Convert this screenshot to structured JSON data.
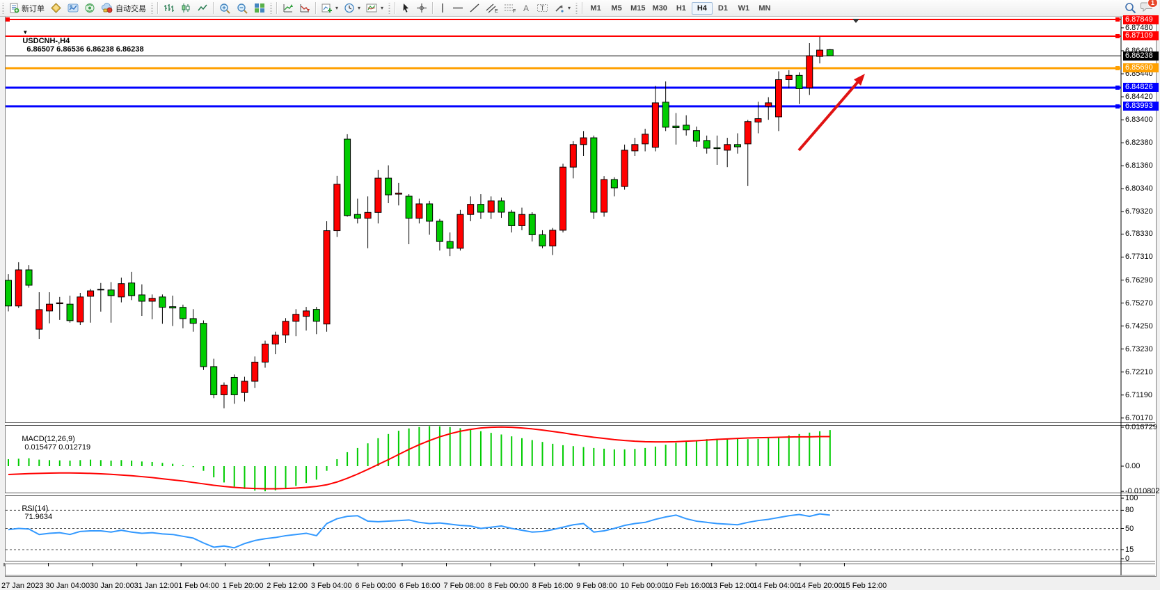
{
  "toolbar": {
    "new_order_label": "新订单",
    "auto_trading_label": "自动交易",
    "timeframes": [
      "M1",
      "M5",
      "M15",
      "M30",
      "H1",
      "H4",
      "D1",
      "W1",
      "MN"
    ],
    "active_timeframe": "H4",
    "notification_badge": "1"
  },
  "chart_title": {
    "collapse_marker": "▼",
    "symbol_period": "USDCNH-,H4",
    "ohlc_text": "6.86507 6.86536 6.86238 6.86238"
  },
  "chart_data": {
    "type": "candlestick",
    "symbol": "USDCNH",
    "timeframe": "H4",
    "bull_color": "#FF0000",
    "bear_color": "#00CC00",
    "ylim": [
      6.695,
      6.882
    ],
    "x_labels": [
      "27 Jan 2023",
      "30 Jan 04:00",
      "30 Jan 20:00",
      "31 Jan 12:00",
      "1 Feb 04:00",
      "1 Feb 20:00",
      "2 Feb 12:00",
      "3 Feb 04:00",
      "6 Feb 00:00",
      "6 Feb 16:00",
      "7 Feb 08:00",
      "8 Feb 00:00",
      "8 Feb 16:00",
      "9 Feb 08:00",
      "10 Feb 00:00",
      "10 Feb 16:00",
      "13 Feb 12:00",
      "14 Feb 04:00",
      "14 Feb 20:00",
      "15 Feb 12:00"
    ],
    "candles": [
      [
        6.7628,
        6.7655,
        6.749,
        6.7514
      ],
      [
        6.7514,
        6.7708,
        6.7505,
        6.7674
      ],
      [
        6.7674,
        6.7695,
        6.7595,
        6.7606
      ],
      [
        6.7411,
        6.7575,
        6.7368,
        6.7498
      ],
      [
        6.7492,
        6.7575,
        6.7437,
        6.7522
      ],
      [
        6.7524,
        6.7554,
        6.7452,
        6.7528
      ],
      [
        6.7522,
        6.756,
        6.744,
        6.7449
      ],
      [
        6.7443,
        6.7572,
        6.743,
        6.7554
      ],
      [
        6.7557,
        6.759,
        6.744,
        6.7581
      ],
      [
        6.7585,
        6.7616,
        6.7489,
        6.7588
      ],
      [
        6.7585,
        6.762,
        6.744,
        6.756
      ],
      [
        6.7554,
        6.764,
        6.753,
        6.7613
      ],
      [
        6.7616,
        6.7665,
        6.754,
        6.756
      ],
      [
        6.7563,
        6.761,
        6.747,
        6.7535
      ],
      [
        6.7535,
        6.7565,
        6.7455,
        6.7548
      ],
      [
        6.7554,
        6.7565,
        6.7435,
        6.7508
      ],
      [
        6.7511,
        6.756,
        6.7425,
        6.7505
      ],
      [
        6.7508,
        6.752,
        6.7415,
        6.7458
      ],
      [
        6.7458,
        6.75,
        6.74,
        6.7437
      ],
      [
        6.7437,
        6.745,
        6.723,
        6.7245
      ],
      [
        6.7245,
        6.728,
        6.7105,
        6.712
      ],
      [
        6.712,
        6.7175,
        6.706,
        6.7163
      ],
      [
        6.7197,
        6.721,
        6.708,
        6.712
      ],
      [
        6.713,
        6.72,
        6.709,
        6.718
      ],
      [
        6.718,
        6.729,
        6.715,
        6.7265
      ],
      [
        6.7265,
        6.736,
        6.724,
        6.7345
      ],
      [
        6.7345,
        6.74,
        6.73,
        6.7385
      ],
      [
        6.7385,
        6.746,
        6.735,
        6.7446
      ],
      [
        6.7446,
        6.75,
        6.738,
        6.7477
      ],
      [
        6.7468,
        6.751,
        6.7405,
        6.7492
      ],
      [
        6.7499,
        6.751,
        6.7389,
        6.7446
      ],
      [
        6.7434,
        6.789,
        6.74,
        6.7848
      ],
      [
        6.7848,
        6.8091,
        6.782,
        6.8054
      ],
      [
        6.8254,
        6.8276,
        6.791,
        6.7915
      ],
      [
        6.792,
        6.799,
        6.788,
        6.7903
      ],
      [
        6.7903,
        6.8,
        6.777,
        6.7929
      ],
      [
        6.7929,
        6.8118,
        6.788,
        6.8081
      ],
      [
        6.8081,
        6.8138,
        6.797,
        6.8007
      ],
      [
        6.801,
        6.806,
        6.796,
        6.8015
      ],
      [
        6.8001,
        6.801,
        6.7788,
        6.7903
      ],
      [
        6.7903,
        6.799,
        6.788,
        6.7967
      ],
      [
        6.7967,
        6.798,
        6.783,
        6.789
      ],
      [
        6.789,
        6.79,
        6.776,
        6.78
      ],
      [
        6.78,
        6.784,
        6.7735,
        6.777
      ],
      [
        6.777,
        6.794,
        6.776,
        6.792
      ],
      [
        6.792,
        6.8,
        6.789,
        6.7965
      ],
      [
        6.7965,
        6.801,
        6.79,
        6.793
      ],
      [
        6.793,
        6.8,
        6.79,
        6.798
      ],
      [
        6.798,
        6.7995,
        6.7905,
        6.793
      ],
      [
        6.793,
        6.794,
        6.784,
        6.787
      ],
      [
        6.787,
        6.795,
        6.785,
        6.792
      ],
      [
        6.792,
        6.793,
        6.78,
        6.783
      ],
      [
        6.783,
        6.785,
        6.777,
        6.778
      ],
      [
        6.778,
        6.786,
        6.774,
        6.785
      ],
      [
        6.785,
        6.8145,
        6.784,
        6.813
      ],
      [
        6.813,
        6.8245,
        6.808,
        6.823
      ],
      [
        6.823,
        6.829,
        6.818,
        6.826
      ],
      [
        6.826,
        6.827,
        6.79,
        6.793
      ],
      [
        6.793,
        6.809,
        6.791,
        6.8075
      ],
      [
        6.8075,
        6.8085,
        6.8,
        6.8038
      ],
      [
        6.8044,
        6.823,
        6.803,
        6.8205
      ],
      [
        6.8202,
        6.826,
        6.818,
        6.823
      ],
      [
        6.8233,
        6.83,
        6.82,
        6.8276
      ],
      [
        6.8218,
        6.849,
        6.82,
        6.8415
      ],
      [
        6.8418,
        6.851,
        6.829,
        6.8307
      ],
      [
        6.8312,
        6.837,
        6.823,
        6.8305
      ],
      [
        6.8316,
        6.836,
        6.827,
        6.8295
      ],
      [
        6.8292,
        6.831,
        6.822,
        6.8245
      ],
      [
        6.8248,
        6.827,
        6.819,
        6.8214
      ],
      [
        6.8216,
        6.827,
        6.814,
        6.8212
      ],
      [
        6.8205,
        6.826,
        6.813,
        6.823
      ],
      [
        6.823,
        6.828,
        6.819,
        6.822
      ],
      [
        6.8233,
        6.834,
        6.8047,
        6.8332
      ],
      [
        6.833,
        6.842,
        6.828,
        6.8345
      ],
      [
        6.84,
        6.844,
        6.834,
        6.8415
      ],
      [
        6.8353,
        6.8555,
        6.829,
        6.8518
      ],
      [
        6.8518,
        6.856,
        6.848,
        6.8537
      ],
      [
        6.8537,
        6.855,
        6.841,
        6.8478
      ],
      [
        6.8482,
        6.868,
        6.845,
        6.8624
      ],
      [
        6.8621,
        6.8708,
        6.859,
        6.8649
      ],
      [
        6.8651,
        6.8654,
        6.8624,
        6.8624
      ]
    ],
    "price_axis_ticks": [
      6.8748,
      6.8646,
      6.8544,
      6.8442,
      6.834,
      6.8238,
      6.8136,
      6.8034,
      6.7932,
      6.7833,
      6.7731,
      6.7629,
      6.7527,
      6.7425,
      6.7323,
      6.7221,
      6.7119,
      6.7017
    ],
    "price_lines": [
      {
        "price": 6.87849,
        "label": "6.87849",
        "color": "#FF0000",
        "width": 2,
        "left_handle": true
      },
      {
        "price": 6.87109,
        "label": "6.87109",
        "color": "#FF0000",
        "width": 2,
        "left_handle": false
      },
      {
        "price": 6.8569,
        "label": "6.85690",
        "color": "#FFA000",
        "width": 3,
        "left_handle": false
      },
      {
        "price": 6.84826,
        "label": "6.84826",
        "color": "#0000FF",
        "width": 3,
        "left_handle": false
      },
      {
        "price": 6.83993,
        "label": "6.83993",
        "color": "#0000FF",
        "width": 3,
        "left_handle": false
      }
    ],
    "current_price": {
      "value": 6.86238,
      "label": "6.86238",
      "line_color": "#000000",
      "badge_color": "#000000"
    },
    "indicators": {
      "macd": {
        "label": "MACD(12,26,9)",
        "values_label": "0.015477 0.012719",
        "scale_max_label": "0.016729",
        "zero_label": "0.00",
        "scale_min_label": "-0.010802",
        "histogram_color": "#00CC00",
        "signal_color": "#FF0000",
        "histogram": [
          0.003,
          0.0032,
          0.0034,
          0.0028,
          0.0026,
          0.0025,
          0.0024,
          0.0026,
          0.0028,
          0.0026,
          0.0024,
          0.0026,
          0.0024,
          0.002,
          0.0018,
          0.0014,
          0.001,
          0.0004,
          -0.0004,
          -0.002,
          -0.0048,
          -0.007,
          -0.0088,
          -0.0098,
          -0.0105,
          -0.0108,
          -0.0104,
          -0.0096,
          -0.0085,
          -0.0072,
          -0.0058,
          -0.002,
          0.003,
          0.006,
          0.0078,
          0.0098,
          0.012,
          0.0138,
          0.0152,
          0.0162,
          0.0168,
          0.0172,
          0.0171,
          0.0168,
          0.0163,
          0.0157,
          0.015,
          0.0143,
          0.0136,
          0.0128,
          0.012,
          0.0112,
          0.0104,
          0.0096,
          0.009,
          0.0086,
          0.0082,
          0.0078,
          0.0075,
          0.0072,
          0.0072,
          0.0074,
          0.0078,
          0.0084,
          0.0092,
          0.01,
          0.0106,
          0.0112,
          0.0116,
          0.0118,
          0.0118,
          0.0117,
          0.0116,
          0.0117,
          0.012,
          0.0126,
          0.0132,
          0.0138,
          0.0144,
          0.015,
          0.0155
        ],
        "signal": [
          -0.0036,
          -0.0034,
          -0.0032,
          -0.0031,
          -0.003,
          -0.0029,
          -0.0029,
          -0.003,
          -0.0031,
          -0.0033,
          -0.0035,
          -0.0038,
          -0.0041,
          -0.0045,
          -0.0049,
          -0.0054,
          -0.0059,
          -0.0064,
          -0.007,
          -0.0076,
          -0.0082,
          -0.0087,
          -0.0091,
          -0.0094,
          -0.0096,
          -0.0097,
          -0.0097,
          -0.0096,
          -0.0094,
          -0.0091,
          -0.0087,
          -0.008,
          -0.0068,
          -0.0052,
          -0.0034,
          -0.0014,
          0.0007,
          0.0028,
          0.005,
          0.0072,
          0.0092,
          0.011,
          0.0126,
          0.0139,
          0.015,
          0.0158,
          0.0164,
          0.0167,
          0.0168,
          0.0167,
          0.0164,
          0.016,
          0.0155,
          0.0149,
          0.0143,
          0.0136,
          0.013,
          0.0124,
          0.0119,
          0.0114,
          0.011,
          0.0107,
          0.0105,
          0.0104,
          0.0104,
          0.0105,
          0.0107,
          0.0109,
          0.0112,
          0.0115,
          0.0117,
          0.0119,
          0.0121,
          0.0122,
          0.0123,
          0.0124,
          0.0125,
          0.0126,
          0.0126,
          0.0127,
          0.0127
        ]
      },
      "rsi": {
        "label": "RSI(14)",
        "value_label": "71.9634",
        "line_color": "#3399FF",
        "levels": [
          80,
          50,
          15
        ],
        "scale_labels": [
          "100",
          "80",
          "50",
          "15",
          "0"
        ],
        "values": [
          48,
          50,
          49,
          40,
          42,
          43,
          40,
          45,
          46,
          46,
          44,
          47,
          44,
          42,
          43,
          41,
          40,
          37,
          34,
          26,
          19,
          21,
          18,
          25,
          30,
          33,
          35,
          38,
          40,
          42,
          38,
          58,
          66,
          70,
          71,
          62,
          61,
          62,
          63,
          64,
          60,
          58,
          59,
          57,
          55,
          54,
          50,
          52,
          54,
          50,
          47,
          44,
          45,
          48,
          52,
          56,
          58,
          44,
          46,
          50,
          55,
          58,
          60,
          65,
          69,
          72,
          66,
          62,
          60,
          58,
          57,
          56,
          60,
          63,
          65,
          68,
          71,
          73,
          70,
          74,
          71.96
        ]
      }
    },
    "annotations": {
      "trend_arrow": {
        "from": [
          1148,
          216
        ],
        "to": [
          1243,
          106
        ],
        "color": "#E01212"
      },
      "chart_shift_marker_x": 1230
    }
  }
}
